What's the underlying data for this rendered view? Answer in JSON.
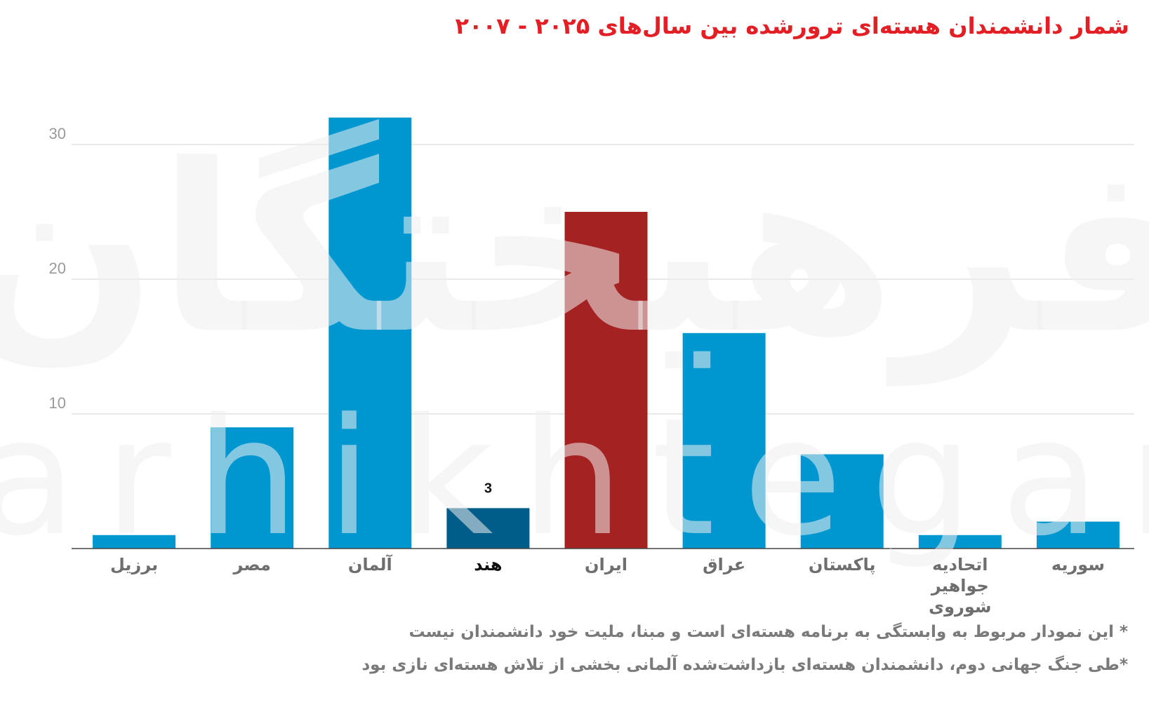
{
  "chart_data": {
    "type": "bar",
    "title": "شمار دانشمندان هسته‌ای ترورشده بین سال‌های ۲۰۲۵ - ۲۰۰۷",
    "categories": [
      "برزیل",
      "مصر",
      "آلمان",
      "هند",
      "ایران",
      "عراق",
      "پاکستان",
      "اتحادیه جواهیر شوروی",
      "سوریه"
    ],
    "values": [
      1,
      9,
      32,
      3,
      25,
      16,
      7,
      1,
      2
    ],
    "colors": [
      "#0097d0",
      "#0097d0",
      "#0097d0",
      "#005c88",
      "#a52222",
      "#0097d0",
      "#0097d0",
      "#0097d0",
      "#0097d0"
    ],
    "highlight_index": 3,
    "labeled_index": 3,
    "ylim": [
      0,
      35
    ],
    "yticks": [
      10,
      20,
      30
    ],
    "grid": true,
    "notes": [
      "* این نمودار مربوط به وابستگی به برنامه هسته‌ای است و مبنا، ملیت خود دانشمندان نیست",
      "*طی جنگ جهانی دوم، دانشمندان هسته‌ای بازداشت‌شده آلمانی بخشی از تلاش هسته‌ای نازی بود"
    ],
    "watermark": [
      "فرهیختگان",
      "farhikhtegan"
    ]
  }
}
